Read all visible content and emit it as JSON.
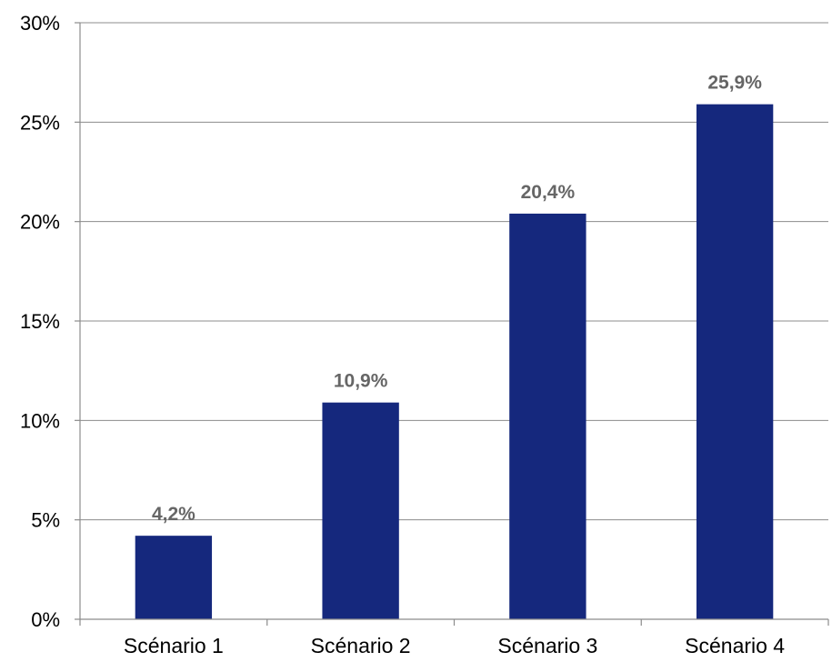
{
  "chart_data": {
    "type": "bar",
    "title": "",
    "xlabel": "",
    "ylabel": "",
    "categories": [
      "Scénario 1",
      "Scénario 2",
      "Scénario 3",
      "Scénario 4"
    ],
    "values": [
      4.2,
      10.9,
      20.4,
      25.9
    ],
    "data_labels": [
      "4,2%",
      "10,9%",
      "20,4%",
      "25,9%"
    ],
    "ylim": [
      0,
      30
    ],
    "y_ticks": [
      0,
      5,
      10,
      15,
      20,
      25,
      30
    ],
    "y_tick_labels": [
      "0%",
      "5%",
      "10%",
      "15%",
      "20%",
      "25%",
      "30%"
    ],
    "grid": true,
    "legend": "none",
    "colors": {
      "bar": "#15287d",
      "data_label": "#666666",
      "grid": "#8c8c8c",
      "axis_text": "#000000"
    }
  }
}
